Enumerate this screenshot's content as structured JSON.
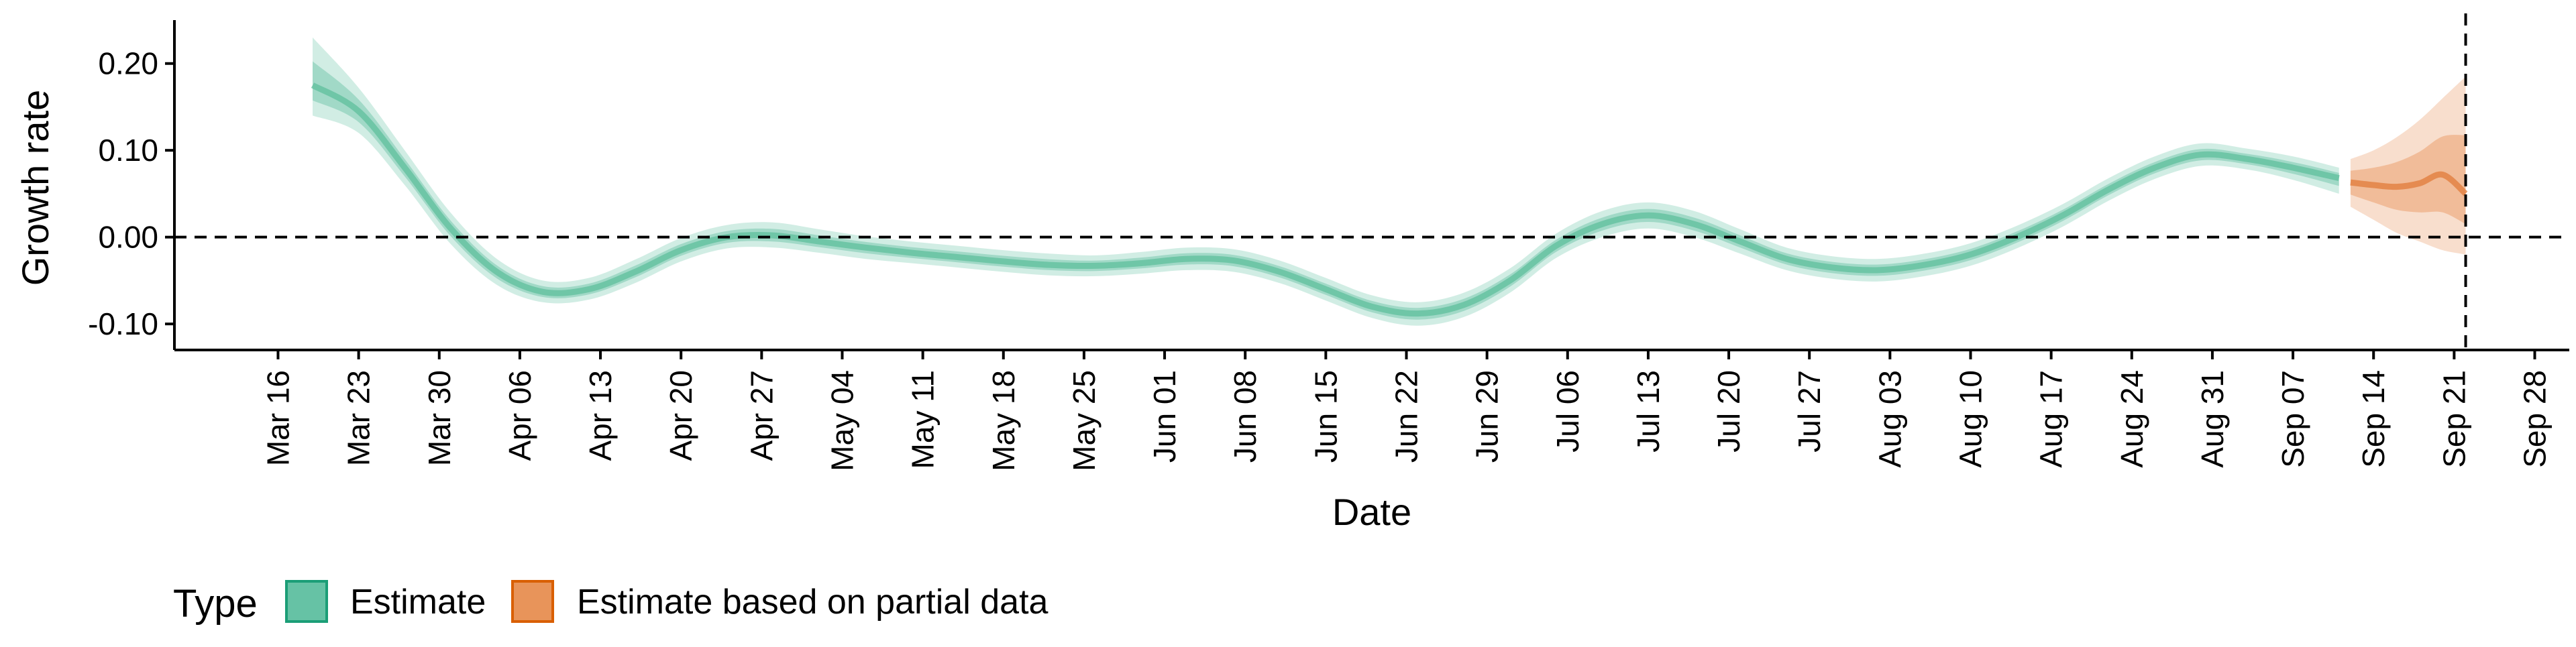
{
  "chart_data": {
    "type": "area",
    "xlabel": "Date",
    "ylabel": "Growth rate",
    "ylim": [
      -0.13,
      0.25
    ],
    "xlim": [
      "2020-03-07",
      "2020-10-01"
    ],
    "y_ticks": [
      {
        "value": 0.2,
        "label": "0.20"
      },
      {
        "value": 0.1,
        "label": "0.10"
      },
      {
        "value": 0.0,
        "label": "0.00"
      },
      {
        "value": -0.1,
        "label": "-0.10"
      }
    ],
    "x_ticks": [
      {
        "date": "2020-03-16",
        "label": "Mar 16"
      },
      {
        "date": "2020-03-23",
        "label": "Mar 23"
      },
      {
        "date": "2020-03-30",
        "label": "Mar 30"
      },
      {
        "date": "2020-04-06",
        "label": "Apr 06"
      },
      {
        "date": "2020-04-13",
        "label": "Apr 13"
      },
      {
        "date": "2020-04-20",
        "label": "Apr 20"
      },
      {
        "date": "2020-04-27",
        "label": "Apr 27"
      },
      {
        "date": "2020-05-04",
        "label": "May 04"
      },
      {
        "date": "2020-05-11",
        "label": "May 11"
      },
      {
        "date": "2020-05-18",
        "label": "May 18"
      },
      {
        "date": "2020-05-25",
        "label": "May 25"
      },
      {
        "date": "2020-06-01",
        "label": "Jun 01"
      },
      {
        "date": "2020-06-08",
        "label": "Jun 08"
      },
      {
        "date": "2020-06-15",
        "label": "Jun 15"
      },
      {
        "date": "2020-06-22",
        "label": "Jun 22"
      },
      {
        "date": "2020-06-29",
        "label": "Jun 29"
      },
      {
        "date": "2020-07-06",
        "label": "Jul 06"
      },
      {
        "date": "2020-07-13",
        "label": "Jul 13"
      },
      {
        "date": "2020-07-20",
        "label": "Jul 20"
      },
      {
        "date": "2020-07-27",
        "label": "Jul 27"
      },
      {
        "date": "2020-08-03",
        "label": "Aug 03"
      },
      {
        "date": "2020-08-10",
        "label": "Aug 10"
      },
      {
        "date": "2020-08-17",
        "label": "Aug 17"
      },
      {
        "date": "2020-08-24",
        "label": "Aug 24"
      },
      {
        "date": "2020-08-31",
        "label": "Aug 31"
      },
      {
        "date": "2020-09-07",
        "label": "Sep 07"
      },
      {
        "date": "2020-09-14",
        "label": "Sep 14"
      },
      {
        "date": "2020-09-21",
        "label": "Sep 21"
      },
      {
        "date": "2020-09-28",
        "label": "Sep 28"
      }
    ],
    "reference_lines": {
      "horizontal": {
        "value": 0.0,
        "style": "dashed"
      },
      "vertical": {
        "date": "2020-09-22",
        "style": "dashed"
      }
    },
    "grid": false,
    "legend": {
      "title": "Type",
      "position": "bottom-left",
      "entries": [
        {
          "label": "Estimate",
          "color": "#66c2a5"
        },
        {
          "label": "Estimate based on partial data",
          "color": "#e8945a"
        }
      ]
    },
    "colors": {
      "estimate_fill": "#66c2a5",
      "estimate_line": "#5fbf9c",
      "partial_fill": "#e8935a",
      "partial_line": "#e07b39"
    },
    "series": [
      {
        "name": "Estimate",
        "x": [
          "2020-03-19",
          "2020-03-23",
          "2020-03-27",
          "2020-03-31",
          "2020-04-04",
          "2020-04-08",
          "2020-04-12",
          "2020-04-16",
          "2020-04-20",
          "2020-04-24",
          "2020-04-28",
          "2020-05-02",
          "2020-05-06",
          "2020-05-10",
          "2020-05-14",
          "2020-05-18",
          "2020-05-22",
          "2020-05-26",
          "2020-05-30",
          "2020-06-03",
          "2020-06-07",
          "2020-06-11",
          "2020-06-15",
          "2020-06-19",
          "2020-06-23",
          "2020-06-27",
          "2020-07-01",
          "2020-07-05",
          "2020-07-09",
          "2020-07-13",
          "2020-07-17",
          "2020-07-21",
          "2020-07-25",
          "2020-07-29",
          "2020-08-02",
          "2020-08-06",
          "2020-08-10",
          "2020-08-14",
          "2020-08-18",
          "2020-08-22",
          "2020-08-26",
          "2020-08-30",
          "2020-09-03",
          "2020-09-07",
          "2020-09-11"
        ],
        "median": [
          0.175,
          0.145,
          0.08,
          0.01,
          -0.04,
          -0.063,
          -0.06,
          -0.04,
          -0.015,
          0.0,
          0.002,
          -0.005,
          -0.012,
          -0.018,
          -0.023,
          -0.028,
          -0.032,
          -0.033,
          -0.03,
          -0.025,
          -0.027,
          -0.04,
          -0.06,
          -0.08,
          -0.088,
          -0.078,
          -0.05,
          -0.01,
          0.015,
          0.025,
          0.015,
          -0.005,
          -0.025,
          -0.035,
          -0.038,
          -0.032,
          -0.02,
          0.0,
          0.025,
          0.055,
          0.08,
          0.095,
          0.09,
          0.08,
          0.068
        ],
        "lower_90": [
          0.14,
          0.12,
          0.06,
          -0.008,
          -0.055,
          -0.075,
          -0.072,
          -0.053,
          -0.028,
          -0.013,
          -0.012,
          -0.018,
          -0.025,
          -0.03,
          -0.035,
          -0.04,
          -0.044,
          -0.045,
          -0.042,
          -0.038,
          -0.04,
          -0.053,
          -0.073,
          -0.093,
          -0.102,
          -0.092,
          -0.064,
          -0.024,
          0.0,
          0.01,
          0.0,
          -0.019,
          -0.038,
          -0.048,
          -0.051,
          -0.045,
          -0.033,
          -0.013,
          0.012,
          0.042,
          0.067,
          0.082,
          0.078,
          0.066,
          0.05
        ],
        "upper_90": [
          0.23,
          0.172,
          0.1,
          0.028,
          -0.025,
          -0.05,
          -0.047,
          -0.026,
          -0.001,
          0.014,
          0.017,
          0.009,
          0.001,
          -0.005,
          -0.01,
          -0.015,
          -0.019,
          -0.021,
          -0.017,
          -0.012,
          -0.014,
          -0.027,
          -0.047,
          -0.067,
          -0.075,
          -0.064,
          -0.036,
          0.004,
          0.03,
          0.04,
          0.03,
          0.009,
          -0.012,
          -0.022,
          -0.025,
          -0.019,
          -0.007,
          0.013,
          0.038,
          0.068,
          0.093,
          0.108,
          0.102,
          0.093,
          0.08
        ]
      },
      {
        "name": "Estimate based on partial data",
        "x": [
          "2020-09-12",
          "2020-09-14",
          "2020-09-16",
          "2020-09-18",
          "2020-09-20",
          "2020-09-22"
        ],
        "median": [
          0.063,
          0.06,
          0.058,
          0.062,
          0.072,
          0.05
        ],
        "lower_90": [
          0.035,
          0.02,
          0.005,
          -0.005,
          -0.015,
          -0.02
        ],
        "upper_90": [
          0.09,
          0.1,
          0.115,
          0.135,
          0.16,
          0.185
        ]
      }
    ]
  }
}
